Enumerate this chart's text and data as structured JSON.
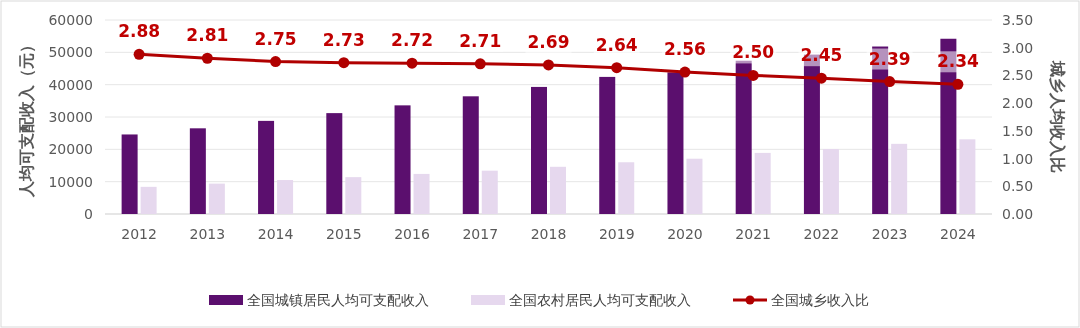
{
  "chart_data": {
    "type": "bar",
    "ylabel": "人均可支配收入（元）",
    "y2label": "城乡人均收入比",
    "categories": [
      "2012",
      "2013",
      "2014",
      "2015",
      "2016",
      "2017",
      "2018",
      "2019",
      "2020",
      "2021",
      "2022",
      "2023",
      "2024"
    ],
    "series": [
      {
        "name": "全国城镇居民人均可支配收入",
        "color": "#5b0f6e",
        "values": [
          24600,
          26500,
          28800,
          31200,
          33600,
          36400,
          39300,
          42400,
          43800,
          47400,
          49300,
          51800,
          54200
        ]
      },
      {
        "name": "全国农村居民人均可支配收入",
        "color": "#e6d8ee",
        "values": [
          8400,
          9400,
          10500,
          11400,
          12400,
          13400,
          14600,
          16000,
          17100,
          18900,
          20100,
          21700,
          23100
        ]
      },
      {
        "name": "全国城乡收入比",
        "type": "line",
        "axis": "y2",
        "color": "#b00000",
        "marker": "circle",
        "values": [
          2.88,
          2.81,
          2.75,
          2.73,
          2.72,
          2.71,
          2.69,
          2.64,
          2.56,
          2.5,
          2.45,
          2.39,
          2.34
        ],
        "value_labels": [
          "2.88",
          "2.81",
          "2.75",
          "2.73",
          "2.72",
          "2.71",
          "2.69",
          "2.64",
          "2.56",
          "2.50",
          "2.45",
          "2.39",
          "2.34"
        ]
      }
    ],
    "ylim": [
      0,
      60000
    ],
    "yticks": [
      0,
      10000,
      20000,
      30000,
      40000,
      50000,
      60000
    ],
    "y2lim": [
      0,
      3.5
    ],
    "y2ticks": [
      {
        "value": 0,
        "label": "0.00"
      },
      {
        "value": 0.5,
        "label": "0.50"
      },
      {
        "value": 1,
        "label": "1.00"
      },
      {
        "value": 1.5,
        "label": "1.50"
      },
      {
        "value": 2,
        "label": "2.00"
      },
      {
        "value": 2.5,
        "label": "2.50"
      },
      {
        "value": 3,
        "label": "3.00"
      },
      {
        "value": 3.5,
        "label": "3.50"
      }
    ],
    "grid": "y",
    "legend": "bottom"
  }
}
